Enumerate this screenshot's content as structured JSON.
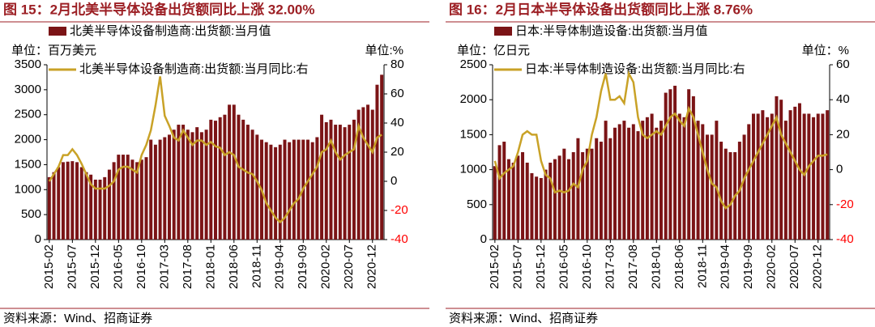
{
  "chart_data": [
    {
      "type": "bar_line",
      "title": "图 15：2月北美半导体设备出货额同比上涨 32.00%",
      "y_unit": "单位：百万美元",
      "y2_unit": "单位:%",
      "source": "资料来源：Wind、招商证券",
      "categories": [
        "2015-02",
        null,
        null,
        null,
        null,
        "2015-07",
        null,
        null,
        null,
        null,
        "2015-12",
        null,
        null,
        null,
        null,
        "2016-05",
        null,
        null,
        null,
        null,
        "2016-10",
        null,
        null,
        null,
        null,
        "2017-03",
        null,
        null,
        null,
        null,
        "2017-08",
        null,
        null,
        null,
        null,
        "2018-01",
        null,
        null,
        null,
        null,
        "2018-06",
        null,
        null,
        null,
        null,
        "2018-11",
        null,
        null,
        null,
        null,
        "2019-04",
        null,
        null,
        null,
        null,
        "2019-09",
        null,
        null,
        null,
        null,
        "2020-02",
        null,
        null,
        null,
        null,
        "2020-07",
        null,
        null,
        null,
        null,
        "2020-12",
        null,
        null
      ],
      "series": [
        {
          "name": "北美半导体设备制造商:出货额:当月值",
          "color": "#7b1416",
          "values": [
            1250,
            1350,
            1450,
            1550,
            1560,
            1570,
            1550,
            1450,
            1350,
            1300,
            1200,
            1200,
            1250,
            1400,
            1550,
            1700,
            1700,
            1700,
            1600,
            1550,
            1600,
            1650,
            2000,
            1900,
            2000,
            2050,
            2100,
            2200,
            2300,
            2300,
            2200,
            2150,
            2250,
            2150,
            2200,
            2400,
            2380,
            2450,
            2500,
            2700,
            2700,
            2500,
            2400,
            2300,
            2200,
            2100,
            2000,
            1950,
            1900,
            1850,
            1900,
            2000,
            1950,
            2000,
            2000,
            2000,
            2000,
            1950,
            2050,
            2500,
            2350,
            2400,
            2300,
            2300,
            2250,
            2300,
            2400,
            2600,
            2650,
            2700,
            2600,
            3100,
            3300
          ]
        },
        {
          "name": "北美半导体设备制造商:出货额:当月同比:右",
          "color": "#c9a227",
          "axis": "y2",
          "values": [
            0,
            5,
            10,
            18,
            18,
            22,
            18,
            12,
            5,
            -2,
            -5,
            -5,
            -5,
            -3,
            0,
            8,
            10,
            10,
            8,
            6,
            18,
            25,
            35,
            52,
            72,
            45,
            38,
            30,
            28,
            35,
            30,
            25,
            28,
            28,
            25,
            27,
            24,
            23,
            18,
            20,
            18,
            10,
            8,
            6,
            5,
            0,
            -6,
            -15,
            -20,
            -25,
            -28,
            -25,
            -20,
            -15,
            -12,
            -5,
            0,
            5,
            10,
            20,
            22,
            28,
            20,
            15,
            18,
            20,
            22,
            38,
            30,
            25,
            20,
            30,
            32
          ]
        }
      ],
      "ylim": [
        0,
        3500
      ],
      "yticks": [
        0,
        500,
        1000,
        1500,
        2000,
        2500,
        3000,
        3500
      ],
      "y2lim": [
        -40,
        80
      ],
      "y2ticks": [
        -40,
        -20,
        0,
        20,
        40,
        60,
        80
      ],
      "y2_negative_tick_color": "#ff0000"
    },
    {
      "type": "bar_line",
      "title": "图 16：2月日本半导体设备出货额同比上涨 8.76%",
      "y_unit": "单位：亿日元",
      "y2_unit": "单位：%",
      "source": "资料来源：Wind、招商证券",
      "categories": [
        "2015-02",
        null,
        null,
        null,
        null,
        "2015-07",
        null,
        null,
        null,
        null,
        "2015-12",
        null,
        null,
        null,
        null,
        "2016-05",
        null,
        null,
        null,
        null,
        "2016-10",
        null,
        null,
        null,
        null,
        "2017-03",
        null,
        null,
        null,
        null,
        "2017-08",
        null,
        null,
        null,
        null,
        "2018-01",
        null,
        null,
        null,
        null,
        "2018-06",
        null,
        null,
        null,
        null,
        "2018-11",
        null,
        null,
        null,
        null,
        "2019-04",
        null,
        null,
        null,
        null,
        "2019-09",
        null,
        null,
        null,
        null,
        "2020-02",
        null,
        null,
        null,
        null,
        "2020-07",
        null,
        null,
        null,
        null,
        "2020-12",
        null,
        null
      ],
      "series": [
        {
          "name": "日本:半导体制造设备:出货额:当月值",
          "color": "#7b1416",
          "values": [
            1050,
            1350,
            1400,
            1150,
            1100,
            1200,
            1250,
            1100,
            950,
            900,
            880,
            1000,
            1100,
            1150,
            1200,
            1300,
            1150,
            1250,
            1450,
            1250,
            1300,
            1300,
            1450,
            1400,
            1700,
            1450,
            1600,
            1650,
            1700,
            1600,
            1650,
            1550,
            1700,
            1750,
            1800,
            1600,
            1700,
            2100,
            2150,
            2200,
            1800,
            1750,
            2150,
            2050,
            1700,
            1650,
            1500,
            1500,
            1700,
            1400,
            1300,
            1250,
            1250,
            1400,
            1500,
            1650,
            1800,
            1800,
            1850,
            1750,
            1800,
            2050,
            2000,
            1700,
            1850,
            1900,
            1950,
            1800,
            1800,
            1750,
            1800,
            1800,
            1850
          ]
        },
        {
          "name": "日本:半导体制造设备:出货额:当月同比:右",
          "color": "#c9a227",
          "axis": "y2",
          "values": [
            5,
            -5,
            -2,
            0,
            2,
            10,
            20,
            22,
            20,
            20,
            5,
            -3,
            -5,
            -13,
            -12,
            -13,
            -12,
            -8,
            -10,
            0,
            5,
            20,
            30,
            45,
            55,
            40,
            40,
            42,
            38,
            55,
            50,
            30,
            20,
            18,
            20,
            22,
            20,
            25,
            30,
            32,
            28,
            25,
            35,
            30,
            20,
            10,
            0,
            -8,
            -10,
            -18,
            -22,
            -20,
            -15,
            -12,
            -5,
            0,
            5,
            10,
            15,
            20,
            25,
            30,
            20,
            15,
            10,
            5,
            0,
            -3,
            2,
            5,
            8,
            8,
            8.76
          ]
        }
      ],
      "ylim": [
        0,
        2500
      ],
      "yticks": [
        0,
        500,
        1000,
        1500,
        2000,
        2500
      ],
      "y2lim": [
        -40,
        60
      ],
      "y2ticks": [
        -40,
        -20,
        0,
        20,
        40,
        60
      ],
      "y2_negative_tick_color": "#ff0000"
    }
  ]
}
